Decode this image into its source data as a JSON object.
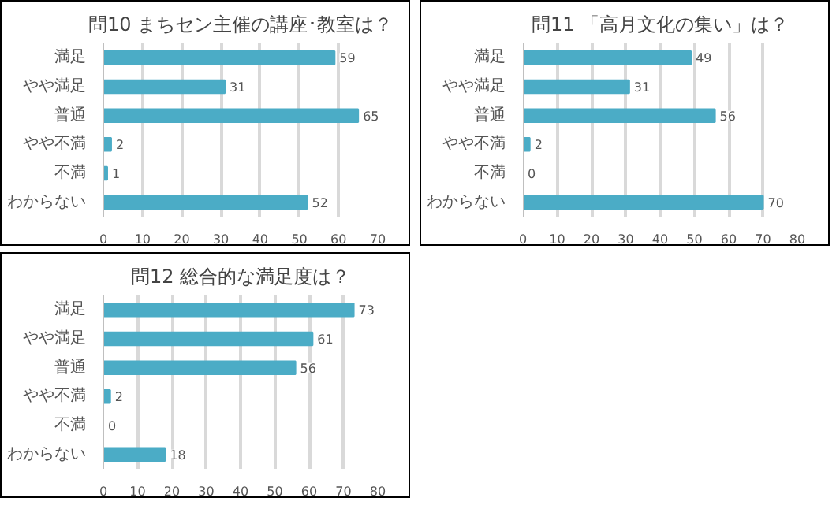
{
  "chart_data": [
    {
      "type": "bar",
      "orientation": "horizontal",
      "title": "問10 まちセン主催の講座･教室は？",
      "categories": [
        "満足",
        "やや満足",
        "普通",
        "やや不満",
        "不満",
        "わからない"
      ],
      "values": [
        59,
        31,
        65,
        2,
        1,
        52
      ],
      "color": "#4bacc6",
      "xlim": [
        0,
        70
      ],
      "xticks": [
        0,
        10,
        20,
        30,
        40,
        50,
        60,
        70
      ],
      "grid": "x",
      "data_labels": true
    },
    {
      "type": "bar",
      "orientation": "horizontal",
      "title": "問11 「高月文化の集い」は？",
      "categories": [
        "満足",
        "やや満足",
        "普通",
        "やや不満",
        "不満",
        "わからない"
      ],
      "values": [
        49,
        31,
        56,
        2,
        0,
        70
      ],
      "color": "#4bacc6",
      "xlim": [
        0,
        80
      ],
      "xticks": [
        0,
        10,
        20,
        30,
        40,
        50,
        60,
        70,
        80
      ],
      "grid": "x",
      "data_labels": true
    },
    {
      "type": "bar",
      "orientation": "horizontal",
      "title": "問12 総合的な満足度は？",
      "categories": [
        "満足",
        "やや満足",
        "普通",
        "やや不満",
        "不満",
        "わからない"
      ],
      "values": [
        73,
        61,
        56,
        2,
        0,
        18
      ],
      "color": "#4bacc6",
      "xlim": [
        0,
        80
      ],
      "xticks": [
        0,
        10,
        20,
        30,
        40,
        50,
        60,
        70,
        80
      ],
      "grid": "x",
      "data_labels": true
    }
  ]
}
